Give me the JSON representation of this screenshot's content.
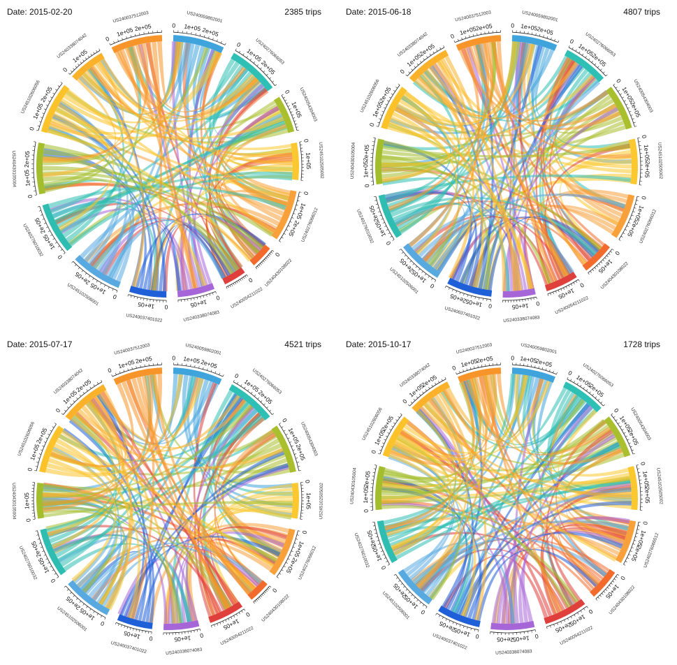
{
  "segment_colors": [
    "#3fa3dc",
    "#2fc0b5",
    "#a9bf2e",
    "#fcc830",
    "#f8a03a",
    "#f26a2c",
    "#e0403c",
    "#a766d8",
    "#1f5fd8",
    "#57a9e0",
    "#2ebdb0",
    "#a3bd2c",
    "#fbc22a",
    "#fbb22a",
    "#f7952a"
  ],
  "chart_data": [
    {
      "type": "chord",
      "date_label": "Date: 2015-02-20",
      "trips_label": "2385 trips",
      "segments": [
        {
          "name": "US240059802001",
          "ticks": [
            "0",
            "1e+05",
            "2e+05"
          ]
        },
        {
          "name": "US240276066053",
          "ticks": [
            "0",
            "1e+05",
            "2e+05"
          ]
        },
        {
          "name": "US240054304003",
          "ticks": [
            "0",
            "1e+05"
          ]
        },
        {
          "name": "US245102505002",
          "ticks": [
            "0",
            "1e+05"
          ]
        },
        {
          "name": "US240276066012",
          "ticks": [
            "0",
            "1e+05",
            "2e+05"
          ]
        },
        {
          "name": "US240430108022",
          "ticks": [
            "0"
          ]
        },
        {
          "name": "US240054211022",
          "ticks": [
            "0"
          ]
        },
        {
          "name": "US240338074083",
          "ticks": [
            "0",
            "1e+05"
          ]
        },
        {
          "name": "US240037401022",
          "ticks": [
            "0",
            "1e+05"
          ]
        },
        {
          "name": "US245102506001",
          "ticks": [
            "0",
            "1e+05",
            "2e+05"
          ]
        },
        {
          "name": "US240276010032",
          "ticks": [
            "0",
            "1e+05",
            "2e+05"
          ]
        },
        {
          "name": "US240430105004",
          "ticks": [
            "0",
            "1e+05",
            "2e+05"
          ]
        },
        {
          "name": "US245102606056",
          "ticks": [
            "0",
            "1e+05",
            "2e+05"
          ]
        },
        {
          "name": "US240338074042",
          "ticks": [
            "0",
            "1e+05"
          ]
        },
        {
          "name": "US240037512003",
          "ticks": [
            "0",
            "1e+05",
            "2e+05"
          ]
        }
      ]
    },
    {
      "type": "chord",
      "date_label": "Date: 2015-06-18",
      "trips_label": "4807 trips",
      "segments": [
        {
          "name": "US240059802001",
          "ticks": [
            "0",
            "1e+05",
            "2e+05"
          ]
        },
        {
          "name": "US240276066053",
          "ticks": [
            "0",
            "1e+05",
            "2e+05"
          ]
        },
        {
          "name": "US240054304003",
          "ticks": [
            "0",
            "1e+05",
            "2e+05"
          ]
        },
        {
          "name": "US245102505002",
          "ticks": [
            "0",
            "1e+05",
            "2e+05"
          ]
        },
        {
          "name": "US240276066012",
          "ticks": [
            "0",
            "1e+05",
            "2e+05"
          ]
        },
        {
          "name": "US240430108022",
          "ticks": [
            "0",
            "1e+05"
          ]
        },
        {
          "name": "US240054211022",
          "ticks": [
            "0",
            "1e+05"
          ]
        },
        {
          "name": "US240338074083",
          "ticks": [
            "0",
            "1e+05"
          ]
        },
        {
          "name": "US240037401022",
          "ticks": [
            "0",
            "1e+05",
            "2e+05"
          ]
        },
        {
          "name": "US245102506001",
          "ticks": [
            "0",
            "1e+05",
            "2e+05"
          ]
        },
        {
          "name": "US240276010032",
          "ticks": [
            "0",
            "1e+05",
            "2e+05"
          ]
        },
        {
          "name": "US240430105004",
          "ticks": [
            "0",
            "1e+05",
            "2e+05"
          ]
        },
        {
          "name": "US245102606056",
          "ticks": [
            "0",
            "1e+05",
            "2e+05"
          ]
        },
        {
          "name": "US240338074042",
          "ticks": [
            "0",
            "1e+05",
            "2e+05"
          ]
        },
        {
          "name": "US240037512003",
          "ticks": [
            "0",
            "1e+05",
            "2e+05"
          ]
        }
      ]
    },
    {
      "type": "chord",
      "date_label": "Date: 2015-07-17",
      "trips_label": "4521 trips",
      "segments": [
        {
          "name": "US240059802001",
          "ticks": [
            "0",
            "1e+05",
            "2e+05"
          ]
        },
        {
          "name": "US240276066053",
          "ticks": [
            "0",
            "1e+05",
            "2e+05"
          ]
        },
        {
          "name": "US240054304003",
          "ticks": [
            "0",
            "1e+05",
            "2e+05"
          ]
        },
        {
          "name": "US245102505002",
          "ticks": [
            "0",
            "1e+05"
          ]
        },
        {
          "name": "US240276066012",
          "ticks": [
            "0",
            "1e+05",
            "2e+05"
          ]
        },
        {
          "name": "US240430108022",
          "ticks": [
            "0"
          ]
        },
        {
          "name": "US240054211022",
          "ticks": [
            "0",
            "1e+05"
          ]
        },
        {
          "name": "US240338074083",
          "ticks": [
            "0",
            "1e+05"
          ]
        },
        {
          "name": "US240037401022",
          "ticks": [
            "0",
            "1e+05"
          ]
        },
        {
          "name": "US245102506001",
          "ticks": [
            "0",
            "1e+05",
            "2e+05"
          ]
        },
        {
          "name": "US240276010032",
          "ticks": [
            "0",
            "1e+05",
            "2e+05"
          ]
        },
        {
          "name": "US240430105004",
          "ticks": [
            "0",
            "1e+05"
          ]
        },
        {
          "name": "US245102606056",
          "ticks": [
            "0",
            "1e+05",
            "2e+05"
          ]
        },
        {
          "name": "US240338074042",
          "ticks": [
            "0",
            "1e+05",
            "2e+05"
          ]
        },
        {
          "name": "US240037512003",
          "ticks": [
            "0",
            "1e+05",
            "2e+05"
          ]
        }
      ]
    },
    {
      "type": "chord",
      "date_label": "Date: 2015-10-17",
      "trips_label": "1728 trips",
      "segments": [
        {
          "name": "US240059802001",
          "ticks": [
            "0",
            "1e+05",
            "2e+05"
          ]
        },
        {
          "name": "US240276066053",
          "ticks": [
            "0",
            "1e+05",
            "2e+05"
          ]
        },
        {
          "name": "US240054304003",
          "ticks": [
            "0",
            "1e+05",
            "2e+05"
          ]
        },
        {
          "name": "US245102505002",
          "ticks": [
            "0",
            "1e+05",
            "2e+05"
          ]
        },
        {
          "name": "US240276066012",
          "ticks": [
            "0",
            "1e+05",
            "2e+05"
          ]
        },
        {
          "name": "US240430108022",
          "ticks": [
            "0",
            "1e+05"
          ]
        },
        {
          "name": "US240054211022",
          "ticks": [
            "0",
            "1e+05",
            "2e+05"
          ]
        },
        {
          "name": "US240338074083",
          "ticks": [
            "0",
            "1e+05",
            "2e+05"
          ]
        },
        {
          "name": "US240037401022",
          "ticks": [
            "0",
            "1e+05",
            "2e+05"
          ]
        },
        {
          "name": "US245102506001",
          "ticks": [
            "0",
            "1e+05",
            "2e+05"
          ]
        },
        {
          "name": "US240276010032",
          "ticks": [
            "0",
            "1e+05",
            "2e+05"
          ]
        },
        {
          "name": "US240430105004",
          "ticks": [
            "0",
            "1e+05",
            "2e+05"
          ]
        },
        {
          "name": "US245102606056",
          "ticks": [
            "0",
            "1e+05",
            "2e+05"
          ]
        },
        {
          "name": "US240338074042",
          "ticks": [
            "0",
            "1e+05",
            "2e+05"
          ]
        },
        {
          "name": "US240037512003",
          "ticks": [
            "0",
            "1e+05",
            "2e+05"
          ]
        }
      ]
    }
  ]
}
